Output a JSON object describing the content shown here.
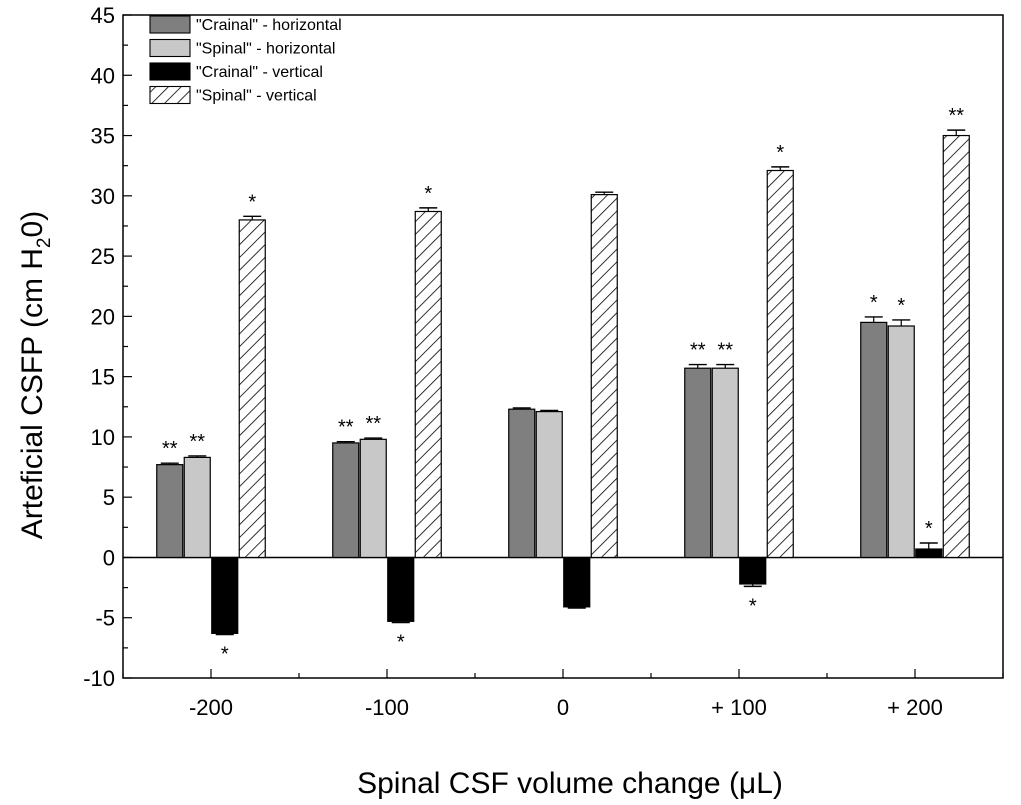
{
  "chart_data": {
    "type": "bar",
    "title": "",
    "xlabel": "Spinal CSF volume change (μL)",
    "ylabel_main": "Arteficial CSFP (cm H",
    "ylabel_sub": "2",
    "ylabel_end": "0)",
    "ylim": [
      -10,
      45
    ],
    "yticks": [
      "45",
      "40",
      "35",
      "30",
      "25",
      "20",
      "15",
      "10",
      "5",
      "0",
      "-5",
      "-10"
    ],
    "ytick_values": [
      45,
      40,
      35,
      30,
      25,
      20,
      15,
      10,
      5,
      0,
      -5,
      -10
    ],
    "categories": [
      "-200",
      "-100",
      "0",
      "+ 100",
      "+ 200"
    ],
    "legend_position": "top-left",
    "series": [
      {
        "name": "\"Crainal\" - horizontal",
        "fill": "#7f7f7f",
        "pattern": "solid",
        "values": [
          7.7,
          9.5,
          12.3,
          15.7,
          19.5
        ],
        "errors": [
          0.12,
          0.1,
          0.1,
          0.3,
          0.45
        ],
        "significance": [
          "**",
          "**",
          "",
          "**",
          "*"
        ]
      },
      {
        "name": "\"Spinal\"  - horizontal",
        "fill": "#c8c8c8",
        "pattern": "solid",
        "values": [
          8.3,
          9.8,
          12.1,
          15.7,
          19.2
        ],
        "errors": [
          0.12,
          0.1,
          0.1,
          0.3,
          0.5
        ],
        "significance": [
          "**",
          "**",
          "",
          "**",
          "*"
        ]
      },
      {
        "name": "\"Crainal\" - vertical",
        "fill": "#000000",
        "pattern": "solid",
        "values": [
          -6.3,
          -5.3,
          -4.1,
          -2.2,
          0.7
        ],
        "errors": [
          0.1,
          0.1,
          0.1,
          0.2,
          0.5
        ],
        "significance": [
          "*",
          "*",
          "",
          "*",
          "*"
        ]
      },
      {
        "name": "\"Spinal\"  - vertical",
        "fill": "#ffffff",
        "pattern": "hatch",
        "values": [
          28.0,
          28.7,
          30.1,
          32.1,
          35.0
        ],
        "errors": [
          0.3,
          0.3,
          0.2,
          0.3,
          0.45
        ],
        "significance": [
          "*",
          "*",
          "",
          "*",
          "**"
        ]
      }
    ]
  }
}
